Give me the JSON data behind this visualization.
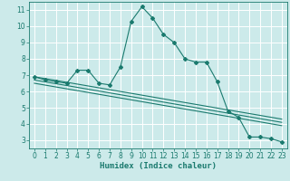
{
  "xlabel": "Humidex (Indice chaleur)",
  "bg_color": "#cceaea",
  "grid_color": "#ffffff",
  "line_color": "#1a7a6e",
  "xlim": [
    -0.5,
    23.5
  ],
  "ylim": [
    2.5,
    11.5
  ],
  "xticks": [
    0,
    1,
    2,
    3,
    4,
    5,
    6,
    7,
    8,
    9,
    10,
    11,
    12,
    13,
    14,
    15,
    16,
    17,
    18,
    19,
    20,
    21,
    22,
    23
  ],
  "yticks": [
    3,
    4,
    5,
    6,
    7,
    8,
    9,
    10,
    11
  ],
  "series1_x": [
    0,
    1,
    2,
    3,
    4,
    5,
    6,
    7,
    8,
    9,
    10,
    11,
    12,
    13,
    14,
    15,
    16,
    17,
    18,
    19,
    20,
    21,
    22,
    23
  ],
  "series1_y": [
    6.9,
    6.7,
    6.6,
    6.5,
    7.3,
    7.3,
    6.5,
    6.4,
    7.5,
    10.3,
    11.2,
    10.5,
    9.5,
    9.0,
    8.0,
    7.8,
    7.8,
    6.6,
    4.8,
    4.4,
    3.2,
    3.2,
    3.1,
    2.9
  ],
  "series2_x": [
    0,
    23
  ],
  "series2_y": [
    6.9,
    4.3
  ],
  "series3_x": [
    0,
    23
  ],
  "series3_y": [
    6.7,
    4.1
  ],
  "series4_x": [
    0,
    23
  ],
  "series4_y": [
    6.5,
    3.9
  ]
}
